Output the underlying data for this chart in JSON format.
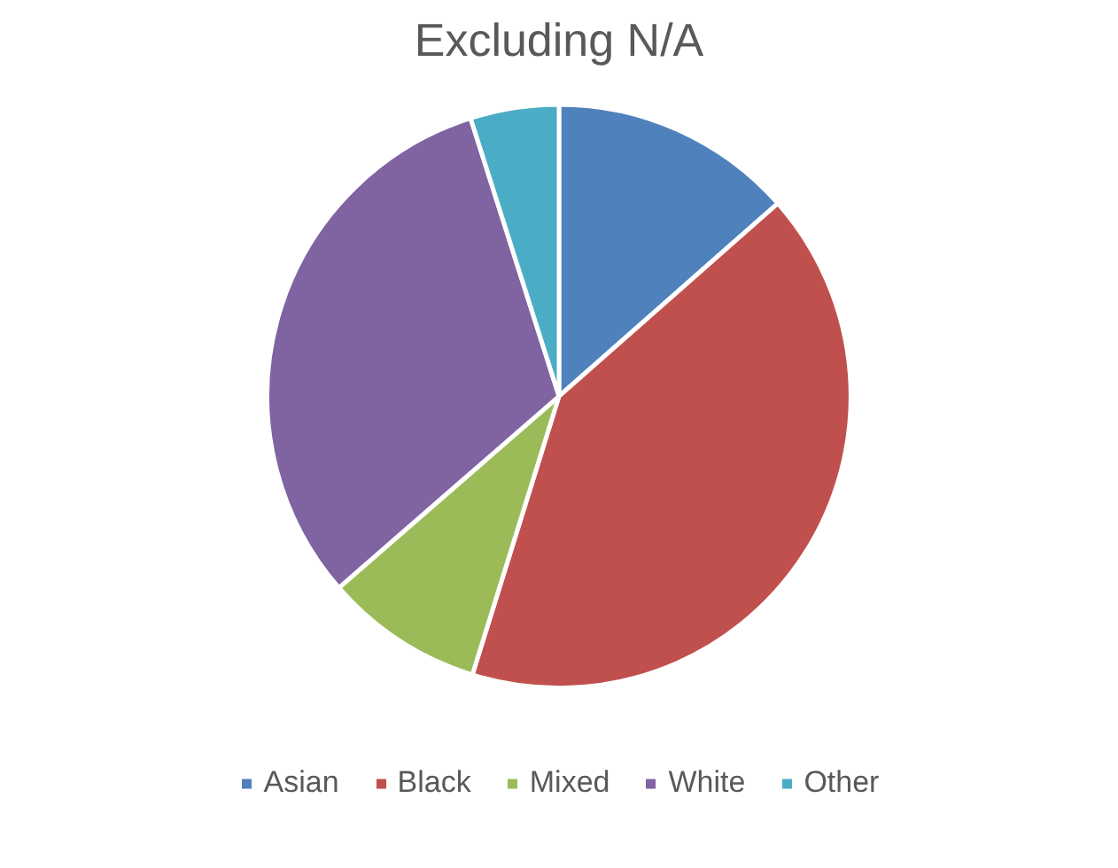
{
  "chart_data": {
    "type": "pie",
    "title": "Excluding N/A",
    "categories": [
      "Asian",
      "Black",
      "Mixed",
      "White",
      "Other"
    ],
    "values": [
      13.5,
      41.3,
      8.8,
      31.5,
      4.9
    ],
    "colors": [
      "#4f81bd",
      "#c0504d",
      "#9bbb59",
      "#8064a2",
      "#4bacc6"
    ],
    "legend": "bottom"
  }
}
